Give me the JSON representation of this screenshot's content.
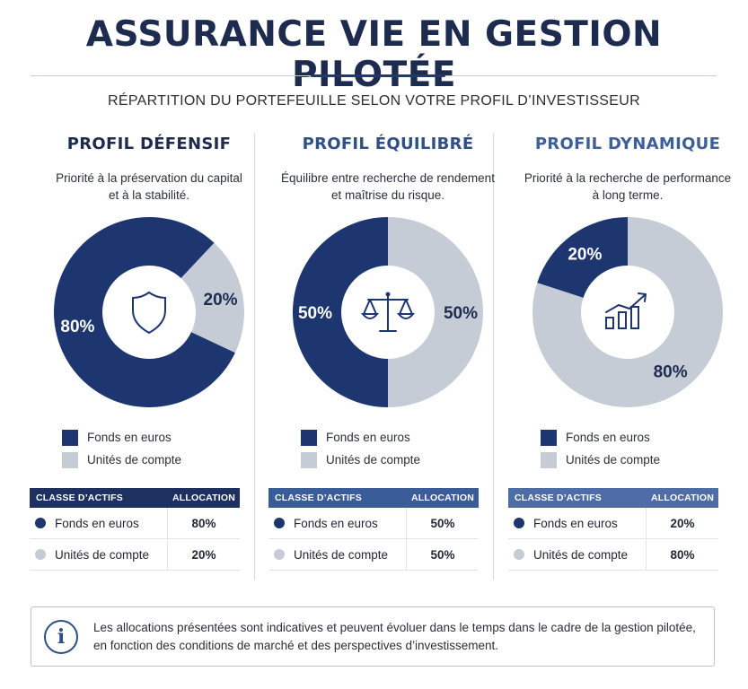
{
  "title": "ASSURANCE VIE EN GESTION PILOTÉE",
  "subtitle": "RÉPARTITION DU PORTEFEUILLE SELON VOTRE PROFIL D’INVESTISSEUR",
  "colors": {
    "dark": "#1d3670",
    "light": "#c6ccd6"
  },
  "table_headers": {
    "asset_class": "CLASSE D’ACTIFS",
    "allocation": "ALLOCATION"
  },
  "legend": {
    "euros": "Fonds en euros",
    "uc": "Unités de compte"
  },
  "chart_data": [
    {
      "type": "pie",
      "title": "PROFIL DÉFENSIF",
      "description": [
        "Priorité à la préservation du capital",
        "et à la stabilité."
      ],
      "icon": "shield-icon",
      "title_color": "#1d2b4f",
      "header_color": "#1d3060",
      "categories": [
        "Fonds en euros",
        "Unités de compte"
      ],
      "values": [
        80,
        20
      ],
      "labels": [
        "80%",
        "20%"
      ],
      "colors": [
        "#1d3670",
        "#c6ccd6"
      ]
    },
    {
      "type": "pie",
      "title": "PROFIL ÉQUILIBRÉ",
      "description": [
        "Équilibre entre recherche de rendement",
        "et maîtrise du risque."
      ],
      "icon": "scales-icon",
      "title_color": "#2f4f8a",
      "header_color": "#3a5c98",
      "categories": [
        "Fonds en euros",
        "Unités de compte"
      ],
      "values": [
        50,
        50
      ],
      "labels": [
        "50%",
        "50%"
      ],
      "colors": [
        "#1d3670",
        "#c6ccd6"
      ]
    },
    {
      "type": "pie",
      "title": "PROFIL DYNAMIQUE",
      "description": [
        "Priorité à la recherche de performance",
        "à long terme."
      ],
      "icon": "growth-chart-icon",
      "title_color": "#3f5f99",
      "header_color": "#4e6da6",
      "categories": [
        "Fonds en euros",
        "Unités de compte"
      ],
      "values": [
        20,
        80
      ],
      "labels": [
        "20%",
        "80%"
      ],
      "colors": [
        "#1d3670",
        "#c6ccd6"
      ]
    }
  ],
  "note": {
    "icon": "info-icon",
    "text": "Les allocations présentées sont indicatives et peuvent évoluer dans le temps dans le cadre de la gestion pilotée, en fonction des conditions de marché et des perspectives d’investissement."
  }
}
